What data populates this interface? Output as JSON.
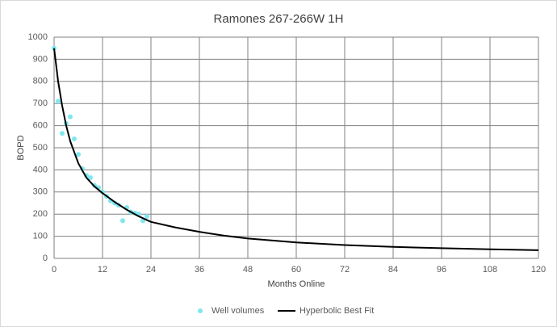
{
  "chart_data": {
    "type": "scatter",
    "title": "Ramones 267-266W 1H",
    "x_label": "Months Online",
    "y_label": "BOPD",
    "xlim": [
      0,
      120
    ],
    "xticks": [
      0,
      12,
      24,
      36,
      48,
      60,
      72,
      84,
      96,
      108,
      120
    ],
    "ylim": [
      0,
      1000
    ],
    "yticks": [
      0,
      100,
      200,
      300,
      400,
      500,
      600,
      700,
      800,
      900,
      1000
    ],
    "grid": true,
    "legend": "bottom",
    "series": [
      {
        "name": "Well volumes",
        "color": "#7fe7f0",
        "mode": "markers",
        "x": [
          0,
          1,
          2,
          3,
          4,
          5,
          6,
          7,
          8,
          9,
          10,
          11,
          12,
          13,
          14,
          15,
          16,
          17,
          18,
          19,
          20,
          21,
          22,
          23
        ],
        "values": [
          950,
          710,
          565,
          610,
          640,
          540,
          470,
          405,
          375,
          365,
          330,
          320,
          300,
          280,
          260,
          250,
          240,
          170,
          230,
          210,
          205,
          200,
          170,
          190
        ]
      },
      {
        "name": "Hyperbolic Best Fit",
        "color": "#000000",
        "mode": "line",
        "x": [
          0,
          1,
          2,
          3,
          4,
          6,
          8,
          10,
          12,
          15,
          18,
          21,
          24,
          30,
          36,
          42,
          48,
          60,
          72,
          84,
          96,
          108,
          120
        ],
        "values": [
          950,
          800,
          690,
          600,
          530,
          430,
          365,
          325,
          295,
          255,
          220,
          190,
          165,
          140,
          120,
          103,
          90,
          72,
          60,
          52,
          46,
          41,
          37
        ]
      }
    ]
  }
}
